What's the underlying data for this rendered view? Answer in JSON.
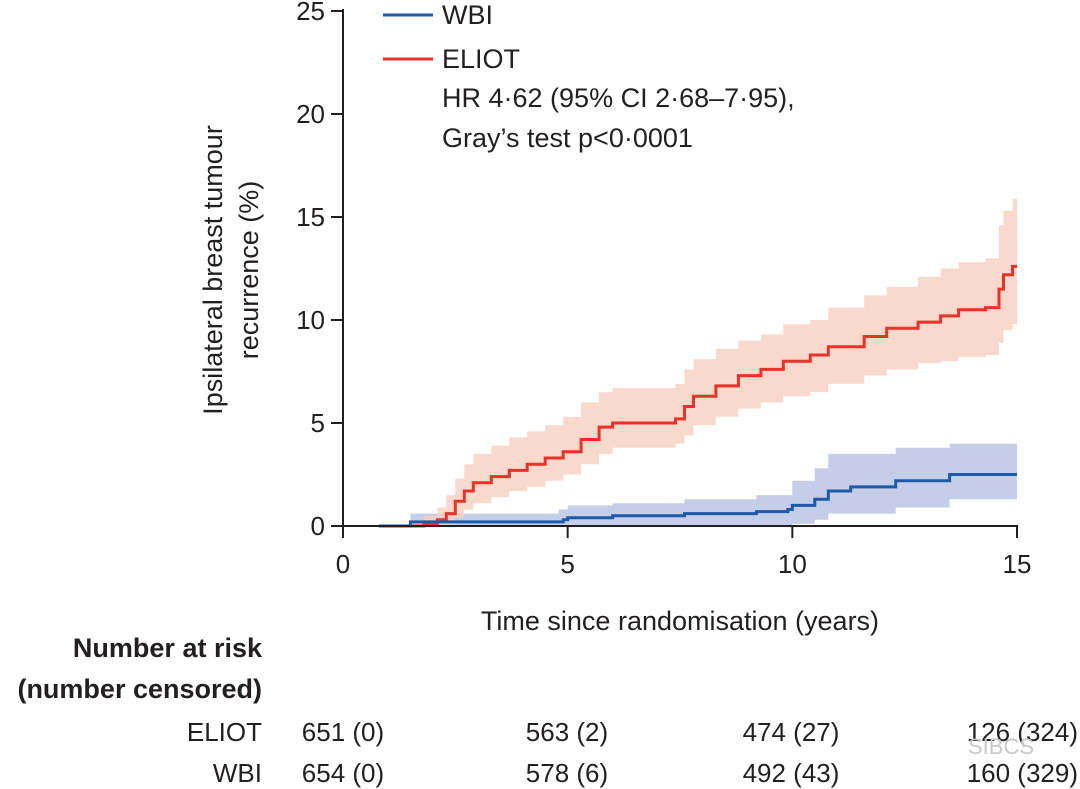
{
  "chart_data": {
    "type": "line",
    "title": "",
    "xlabel": "Time since randomisation (years)",
    "ylabel_lines": [
      "Ipsilateral breast tumour",
      "recurrence (%)"
    ],
    "xlim": [
      0,
      15
    ],
    "ylim": [
      0,
      25
    ],
    "x_ticks": [
      0,
      5,
      10,
      15
    ],
    "y_ticks": [
      0,
      5,
      10,
      15,
      20,
      25
    ],
    "grid": false,
    "legend_position": "top-left",
    "annotation_lines": [
      "HR 4·62 (95% CI 2·68–7·95),",
      "Gray’s test p<0·0001"
    ],
    "series": [
      {
        "name": "WBI",
        "color": "#1f5aa8",
        "band_color": "#b7c2e3",
        "steps": [
          [
            0.8,
            0
          ],
          [
            1.5,
            0.2
          ],
          [
            4.8,
            0.2
          ],
          [
            4.9,
            0.3
          ],
          [
            5.0,
            0.4
          ],
          [
            6.0,
            0.5
          ],
          [
            7.6,
            0.6
          ],
          [
            9.2,
            0.7
          ],
          [
            9.9,
            0.8
          ],
          [
            10.0,
            1.0
          ],
          [
            10.5,
            1.3
          ],
          [
            10.8,
            1.7
          ],
          [
            11.3,
            1.9
          ],
          [
            12.3,
            2.2
          ],
          [
            13.5,
            2.5
          ],
          [
            15.0,
            2.5
          ]
        ],
        "ci_band": [
          [
            1.5,
            0,
            0.6
          ],
          [
            4.8,
            0,
            0.8
          ],
          [
            5.0,
            0,
            1.0
          ],
          [
            6.0,
            0,
            1.1
          ],
          [
            7.6,
            0,
            1.3
          ],
          [
            9.2,
            0,
            1.5
          ],
          [
            10.0,
            0.1,
            2.2
          ],
          [
            10.5,
            0.3,
            2.8
          ],
          [
            10.8,
            0.6,
            3.5
          ],
          [
            12.3,
            0.9,
            3.8
          ],
          [
            13.5,
            1.3,
            4.0
          ],
          [
            15.0,
            1.4,
            4.0
          ]
        ]
      },
      {
        "name": "ELIOT",
        "color": "#e8332a",
        "band_color": "#f9cfc0",
        "steps": [
          [
            0.8,
            0
          ],
          [
            1.8,
            0.1
          ],
          [
            2.1,
            0.3
          ],
          [
            2.3,
            0.6
          ],
          [
            2.5,
            1.2
          ],
          [
            2.7,
            1.7
          ],
          [
            2.9,
            2.1
          ],
          [
            3.3,
            2.4
          ],
          [
            3.7,
            2.7
          ],
          [
            4.1,
            3.0
          ],
          [
            4.5,
            3.3
          ],
          [
            4.9,
            3.6
          ],
          [
            5.3,
            4.2
          ],
          [
            5.7,
            4.8
          ],
          [
            6.0,
            5.0
          ],
          [
            7.4,
            5.2
          ],
          [
            7.6,
            5.8
          ],
          [
            7.8,
            6.3
          ],
          [
            8.3,
            6.8
          ],
          [
            8.8,
            7.3
          ],
          [
            9.3,
            7.6
          ],
          [
            9.8,
            8.0
          ],
          [
            10.4,
            8.3
          ],
          [
            10.8,
            8.7
          ],
          [
            11.6,
            9.2
          ],
          [
            12.1,
            9.6
          ],
          [
            12.8,
            9.9
          ],
          [
            13.3,
            10.2
          ],
          [
            13.7,
            10.5
          ],
          [
            14.3,
            10.6
          ],
          [
            14.6,
            11.5
          ],
          [
            14.7,
            12.2
          ],
          [
            14.9,
            12.6
          ],
          [
            15.0,
            12.6
          ]
        ],
        "ci_band": [
          [
            1.5,
            0,
            0.3
          ],
          [
            1.8,
            0,
            0.5
          ],
          [
            2.1,
            0,
            0.9
          ],
          [
            2.3,
            0.1,
            1.5
          ],
          [
            2.5,
            0.4,
            2.3
          ],
          [
            2.7,
            0.8,
            3.0
          ],
          [
            2.9,
            1.1,
            3.5
          ],
          [
            3.3,
            1.4,
            3.9
          ],
          [
            3.7,
            1.7,
            4.3
          ],
          [
            4.1,
            1.9,
            4.6
          ],
          [
            4.5,
            2.2,
            4.9
          ],
          [
            4.9,
            2.5,
            5.3
          ],
          [
            5.3,
            3.0,
            6.0
          ],
          [
            5.7,
            3.5,
            6.5
          ],
          [
            6.0,
            3.8,
            6.7
          ],
          [
            7.4,
            4.0,
            6.9
          ],
          [
            7.6,
            4.4,
            7.6
          ],
          [
            7.8,
            4.9,
            8.1
          ],
          [
            8.3,
            5.3,
            8.6
          ],
          [
            8.8,
            5.7,
            9.0
          ],
          [
            9.3,
            6.0,
            9.3
          ],
          [
            9.8,
            6.3,
            9.8
          ],
          [
            10.4,
            6.5,
            10.0
          ],
          [
            10.8,
            6.9,
            10.6
          ],
          [
            11.6,
            7.3,
            11.2
          ],
          [
            12.1,
            7.6,
            11.6
          ],
          [
            12.8,
            7.9,
            12.1
          ],
          [
            13.3,
            8.0,
            12.5
          ],
          [
            13.7,
            8.2,
            12.8
          ],
          [
            14.3,
            8.3,
            13.0
          ],
          [
            14.6,
            8.9,
            14.6
          ],
          [
            14.7,
            9.5,
            15.3
          ],
          [
            14.9,
            9.8,
            15.9
          ],
          [
            15.0,
            9.8,
            15.9
          ]
        ]
      }
    ],
    "risk_table": {
      "header_lines": [
        "Number at risk",
        "(number censored)"
      ],
      "times": [
        0,
        5,
        10,
        15
      ],
      "rows": [
        {
          "label": "ELIOT",
          "cells": [
            "651 (0)",
            "563 (2)",
            "474 (27)",
            "126 (324)"
          ]
        },
        {
          "label": "WBI",
          "cells": [
            "654 (0)",
            "578 (6)",
            "492 (43)",
            "160 (329)"
          ]
        }
      ]
    },
    "watermark": "SIBCS"
  }
}
